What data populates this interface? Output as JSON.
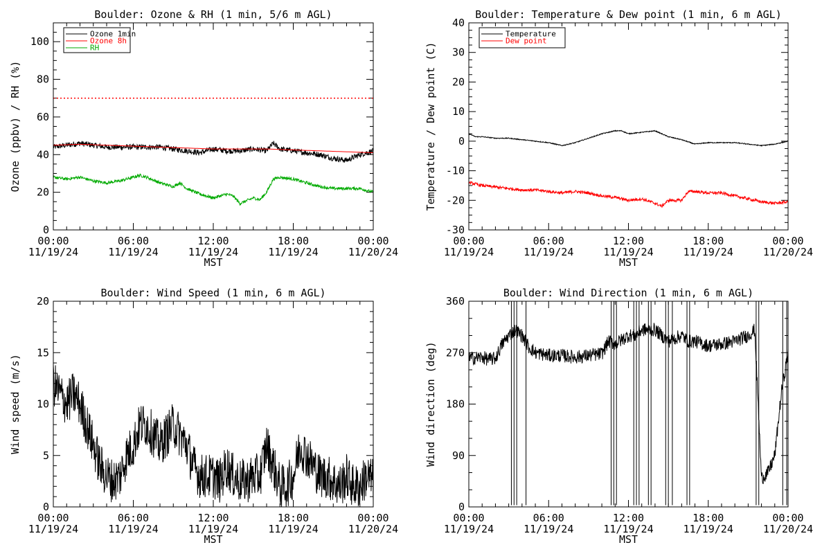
{
  "page": {
    "background": "#ffffff"
  },
  "chart_data": [
    {
      "type": "line",
      "title": "Boulder: Ozone & RH (1 min, 5/6 m AGL)",
      "xlabel": "MST",
      "ylabel": "Ozone (ppbv) / RH (%)",
      "ylim": [
        0,
        110
      ],
      "yticks": [
        0,
        20,
        40,
        60,
        80,
        100
      ],
      "xticks": [
        {
          "time": "00:00",
          "date": "11/19/24"
        },
        {
          "time": "06:00",
          "date": "11/19/24"
        },
        {
          "time": "12:00",
          "date": "11/19/24"
        },
        {
          "time": "18:00",
          "date": "11/19/24"
        },
        {
          "time": "00:00",
          "date": "11/20/24"
        }
      ],
      "x_unit": "hours MST since 11/19/24 00:00",
      "xlim": [
        0,
        24
      ],
      "legend_position": "top-left",
      "reference_lines": [
        {
          "y": 70,
          "color": "#ff0000",
          "style": "dotted"
        }
      ],
      "series": [
        {
          "name": "Ozone 1min",
          "color": "#000000",
          "noise": 1.5,
          "x": [
            0,
            1,
            2,
            3,
            4,
            5,
            6,
            7,
            8,
            9,
            10,
            11,
            12,
            13,
            14,
            15,
            16,
            16.5,
            17,
            18,
            19,
            20,
            21,
            22,
            23,
            24
          ],
          "values": [
            44,
            45,
            46,
            45,
            44,
            44,
            44,
            44,
            44,
            43,
            42,
            41,
            43,
            42,
            42,
            43,
            42,
            46,
            43,
            42,
            41,
            40,
            38,
            37,
            40,
            42
          ]
        },
        {
          "name": "Ozone 8h",
          "color": "#ff0000",
          "noise": 0,
          "x": [
            0,
            2,
            4,
            6,
            8,
            10,
            12,
            14,
            16,
            18,
            20,
            22,
            24
          ],
          "values": [
            45,
            45.5,
            45,
            44.5,
            44,
            43.5,
            43,
            43,
            43,
            42.5,
            42,
            41.5,
            41
          ]
        },
        {
          "name": "RH",
          "color": "#00aa00",
          "noise": 0.8,
          "x": [
            0,
            1,
            2,
            3,
            4,
            5,
            6,
            6.5,
            7,
            8,
            9,
            9.5,
            10,
            11,
            12,
            13,
            13.5,
            14,
            15,
            15.5,
            16,
            16.5,
            17,
            18,
            19,
            20,
            21,
            22,
            23,
            24
          ],
          "values": [
            28,
            27,
            28,
            26,
            25,
            26,
            28,
            29,
            28,
            25,
            23,
            25,
            22,
            19,
            17,
            19,
            18,
            14,
            17,
            16,
            20,
            27,
            28,
            27,
            25,
            23,
            22,
            22,
            22,
            20
          ]
        }
      ]
    },
    {
      "type": "line",
      "title": "Boulder: Temperature & Dew point (1 min, 6 m AGL)",
      "xlabel": "MST",
      "ylabel": "Temperature / Dew point (C)",
      "ylim": [
        -30,
        40
      ],
      "yticks": [
        -30,
        -20,
        -10,
        0,
        10,
        20,
        30,
        40
      ],
      "xticks": [
        {
          "time": "00:00",
          "date": "11/19/24"
        },
        {
          "time": "06:00",
          "date": "11/19/24"
        },
        {
          "time": "12:00",
          "date": "11/19/24"
        },
        {
          "time": "18:00",
          "date": "11/19/24"
        },
        {
          "time": "00:00",
          "date": "11/20/24"
        }
      ],
      "x_unit": "hours MST since 11/19/24 00:00",
      "xlim": [
        0,
        24
      ],
      "legend_position": "top-left",
      "series": [
        {
          "name": "Temperature",
          "color": "#000000",
          "noise": 0.15,
          "x": [
            0,
            0.5,
            1,
            2,
            3,
            4,
            5,
            6,
            7,
            8,
            9,
            10,
            11,
            11.5,
            12,
            13,
            14,
            15,
            16,
            17,
            18,
            19,
            20,
            21,
            22,
            23,
            24
          ],
          "values": [
            2.5,
            1.5,
            1.5,
            1,
            1,
            0.5,
            0,
            -0.5,
            -1.5,
            -0.5,
            1,
            2.5,
            3.5,
            3.5,
            2.5,
            3,
            3.5,
            1.5,
            0.5,
            -1,
            -0.5,
            -0.5,
            -0.5,
            -1,
            -1.5,
            -1,
            0
          ]
        },
        {
          "name": "Dew point",
          "color": "#ff0000",
          "noise": 0.5,
          "x": [
            0,
            1,
            2,
            3,
            4,
            5,
            6,
            7,
            8,
            9,
            10,
            11,
            12,
            13,
            14,
            14.5,
            15,
            16,
            16.5,
            17,
            18,
            19,
            20,
            21,
            22,
            23,
            24
          ],
          "values": [
            -14,
            -15,
            -15.5,
            -16,
            -16.5,
            -16.5,
            -17,
            -17.5,
            -17,
            -17.5,
            -18.5,
            -19,
            -20,
            -19.5,
            -21,
            -22,
            -20,
            -20,
            -17,
            -17,
            -17.5,
            -17.5,
            -18.5,
            -19.5,
            -20.5,
            -21,
            -20.5
          ]
        }
      ]
    },
    {
      "type": "line",
      "title": "Boulder: Wind Speed (1 min, 6 m AGL)",
      "xlabel": "MST",
      "ylabel": "Wind speed (m/s)",
      "ylim": [
        0,
        20
      ],
      "yticks": [
        0,
        5,
        10,
        15,
        20
      ],
      "xticks": [
        {
          "time": "00:00",
          "date": "11/19/24"
        },
        {
          "time": "06:00",
          "date": "11/19/24"
        },
        {
          "time": "12:00",
          "date": "11/19/24"
        },
        {
          "time": "18:00",
          "date": "11/19/24"
        },
        {
          "time": "00:00",
          "date": "11/20/24"
        }
      ],
      "x_unit": "hours MST since 11/19/24 00:00",
      "xlim": [
        0,
        24
      ],
      "series": [
        {
          "name": "",
          "color": "#000000",
          "noise": 2.2,
          "x": [
            0,
            0.5,
            1,
            1.5,
            2,
            2.5,
            3,
            3.5,
            4,
            4.5,
            5,
            5.5,
            6,
            6.5,
            7,
            7.5,
            8,
            8.5,
            9,
            9.5,
            10,
            10.5,
            11,
            11.5,
            12,
            12.5,
            13,
            13.5,
            14,
            14.5,
            15,
            15.5,
            16,
            16.5,
            17,
            17.5,
            18,
            18.5,
            19,
            19.5,
            20,
            20.5,
            21,
            21.5,
            22,
            22.5,
            23,
            23.5,
            24
          ],
          "values": [
            12,
            11,
            10,
            11,
            10,
            8,
            6,
            4,
            3,
            2.5,
            3,
            5,
            6,
            8,
            8,
            7,
            6,
            7,
            8,
            7,
            6,
            4,
            3,
            3,
            3,
            2.5,
            4,
            3,
            2.5,
            2.5,
            3,
            3,
            6,
            4,
            2,
            2,
            3,
            6,
            5,
            4,
            3,
            3,
            2.5,
            2,
            3,
            2,
            2,
            3,
            2.5
          ]
        }
      ]
    },
    {
      "type": "line",
      "title": "Boulder: Wind Direction (1 min, 6 m AGL)",
      "xlabel": "MST",
      "ylabel": "Wind direction (deg)",
      "ylim": [
        0,
        360
      ],
      "yticks": [
        0,
        90,
        180,
        270,
        360
      ],
      "xticks": [
        {
          "time": "00:00",
          "date": "11/19/24"
        },
        {
          "time": "06:00",
          "date": "11/19/24"
        },
        {
          "time": "12:00",
          "date": "11/19/24"
        },
        {
          "time": "18:00",
          "date": "11/19/24"
        },
        {
          "time": "00:00",
          "date": "11/20/24"
        }
      ],
      "x_unit": "hours MST since 11/19/24 00:00",
      "xlim": [
        0,
        24
      ],
      "wrap_spikes": [
        3.2,
        3.4,
        3.6,
        4.3,
        10.7,
        10.9,
        11.1,
        12.4,
        12.6,
        12.8,
        13.5,
        13.7,
        14.8,
        15.0,
        15.3,
        16.4,
        16.6,
        21.6,
        21.8,
        23.6,
        23.9
      ],
      "series": [
        {
          "name": "",
          "color": "#000000",
          "noise": 12,
          "x": [
            0,
            1,
            1.5,
            2,
            2.5,
            3,
            3.5,
            4,
            4.5,
            5,
            6,
            7,
            8,
            9,
            10,
            10.5,
            11,
            12,
            12.5,
            13,
            14,
            14.5,
            15,
            16,
            16.5,
            17,
            18,
            19,
            20,
            21,
            21.5,
            22,
            22.5,
            23,
            23.5,
            24
          ],
          "values": [
            260,
            262,
            258,
            260,
            285,
            300,
            310,
            300,
            280,
            270,
            265,
            265,
            262,
            265,
            268,
            290,
            285,
            300,
            300,
            310,
            310,
            300,
            290,
            300,
            290,
            290,
            282,
            285,
            290,
            300,
            310,
            50,
            60,
            90,
            200,
            270
          ]
        }
      ]
    }
  ]
}
